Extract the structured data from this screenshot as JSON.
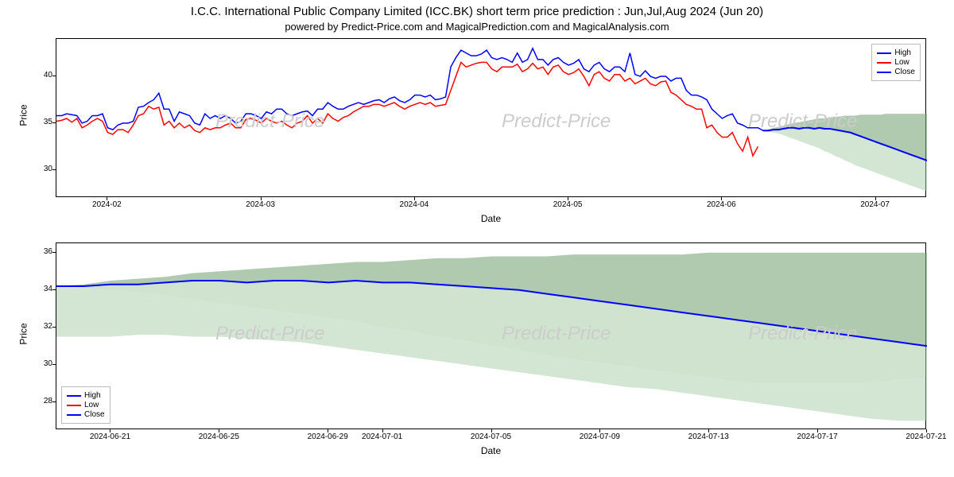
{
  "title": "I.C.C. International Public Company Limited (ICC.BK) short term price prediction : Jun,Jul,Aug 2024 (Jun 20)",
  "subtitle": "powered by Predict-Price.com and MagicalPrediction.com and MagicalAnalysis.com",
  "watermark_text": "Predict-Price",
  "watermark_color": "#cccccc",
  "legend": {
    "items": [
      {
        "label": "High",
        "color": "#0000ff"
      },
      {
        "label": "Low",
        "color": "#ff0000"
      },
      {
        "label": "Close",
        "color": "#0000ff"
      }
    ]
  },
  "chart1": {
    "type": "line",
    "xlabel": "Date",
    "ylabel": "Price",
    "ylim": [
      27,
      44
    ],
    "yticks": [
      30,
      35,
      40
    ],
    "xticks": [
      "2024-02",
      "2024-03",
      "2024-04",
      "2024-05",
      "2024-06",
      "2024-07"
    ],
    "xtick_idx": [
      10,
      40,
      70,
      100,
      130,
      160
    ],
    "background_color": "#ffffff",
    "high": {
      "color": "#0000ff",
      "linewidth": 1.5,
      "values": [
        35.8,
        35.8,
        36,
        35.9,
        35.8,
        35,
        35.2,
        35.8,
        35.8,
        36,
        34.5,
        34.3,
        34.8,
        35,
        35,
        35.2,
        36.7,
        36.8,
        37.2,
        37.5,
        38.2,
        36.5,
        36.5,
        35.2,
        36.2,
        36,
        35.8,
        35,
        34.8,
        36,
        35.5,
        35.8,
        35.5,
        35.8,
        35.5,
        35,
        35.2,
        36,
        36,
        35.8,
        35.5,
        36.2,
        36,
        36.5,
        36.5,
        36,
        35.8,
        36,
        36.2,
        36.3,
        35.8,
        36.5,
        36.5,
        37.2,
        36.8,
        36.5,
        36.5,
        36.8,
        37,
        37.2,
        37,
        37.2,
        37.4,
        37.5,
        37.2,
        37.6,
        37.8,
        37.4,
        37.2,
        37.5,
        38,
        38,
        37.8,
        38,
        37.5,
        37.6,
        37.8,
        41,
        42,
        42.8,
        42.5,
        42.2,
        42.2,
        42.4,
        42.8,
        42,
        41.8,
        42,
        41.8,
        41.5,
        42.5,
        41.5,
        41.8,
        43,
        41.8,
        41.8,
        41.2,
        41.8,
        42,
        41.5,
        41.2,
        41.4,
        41.8,
        40.8,
        40.5,
        41.2,
        41.5,
        40.8,
        40.5,
        41,
        41,
        40.5,
        42.5,
        40.2,
        40,
        40.6,
        40,
        39.8,
        40,
        40,
        39.5,
        39.8,
        39.8,
        38.5,
        38,
        38,
        37.8,
        37.5,
        36.5,
        36,
        35.5,
        35.8,
        36,
        35,
        34.8,
        34.5,
        34.5,
        34.5,
        34.2,
        34.2,
        34.3,
        34.3,
        34.4,
        34.5,
        34.5,
        34.4,
        34.5,
        34.5,
        34.4,
        34.5,
        34.4,
        34.4,
        34.3,
        34.2,
        34.1,
        34.0,
        33.8,
        33.6,
        33.4,
        33.2,
        33.0,
        32.8,
        32.6,
        32.4,
        32.2,
        32.0,
        31.8,
        31.6,
        31.4,
        31.2,
        31.0
      ]
    },
    "low": {
      "color": "#ff0000",
      "linewidth": 1.5,
      "values": [
        35.2,
        35.3,
        35.5,
        35.1,
        35.5,
        34.5,
        34.8,
        35.2,
        35.5,
        35.2,
        34.0,
        33.8,
        34.3,
        34.3,
        34.0,
        34.8,
        35.8,
        36.0,
        36.8,
        36.5,
        36.7,
        34.8,
        35.2,
        34.5,
        35.0,
        34.5,
        34.8,
        34.2,
        34.0,
        34.5,
        34.3,
        34.5,
        34.5,
        34.8,
        35.0,
        34.5,
        34.5,
        35.4,
        35.5,
        35.3,
        35.0,
        35.5,
        35.2,
        35.0,
        35.2,
        34.8,
        34.5,
        35.0,
        35.2,
        35.8,
        35.0,
        35.5,
        35.0,
        36.0,
        35.5,
        35.2,
        35.6,
        35.8,
        36.2,
        36.5,
        36.8,
        36.8,
        37.0,
        37.0,
        36.8,
        37.0,
        37.2,
        36.8,
        36.5,
        36.8,
        37.0,
        37.2,
        37.0,
        37.2,
        36.8,
        36.9,
        37.0,
        38.5,
        40.0,
        41.5,
        41.0,
        41.2,
        41.4,
        41.5,
        41.5,
        40.8,
        40.5,
        41.0,
        41.0,
        41.0,
        41.3,
        40.5,
        40.8,
        41.4,
        40.8,
        41.0,
        40.2,
        41.0,
        41.2,
        40.5,
        40.2,
        40.4,
        40.8,
        40.0,
        39.0,
        40.2,
        40.5,
        39.8,
        39.5,
        40.2,
        40.2,
        39.5,
        39.8,
        39.2,
        39.5,
        39.8,
        39.2,
        39.0,
        39.4,
        39.5,
        38.3,
        38.0,
        37.5,
        37.0,
        36.8,
        36.5,
        36.5,
        34.5,
        34.8,
        34.0,
        33.5,
        33.5,
        34.0,
        32.8,
        32.0,
        33.5,
        31.5,
        32.5
      ]
    },
    "close": {
      "color": "#0000ff",
      "linewidth": 2,
      "start_idx": 138,
      "values": [
        34.2,
        34.2,
        34.3,
        34.3,
        34.4,
        34.5,
        34.5,
        34.4,
        34.5,
        34.5,
        34.4,
        34.5,
        34.4,
        34.4,
        34.3,
        34.2,
        34.1,
        34.0,
        33.8,
        33.6,
        33.4,
        33.2,
        33.0,
        32.8,
        32.6,
        32.4,
        32.2,
        32.0,
        31.8,
        31.6,
        31.4,
        31.2,
        31.0
      ]
    },
    "band_upper": {
      "color": "#7ba67b",
      "opacity": 0.6,
      "start_idx": 138,
      "values": [
        34.2,
        34.3,
        34.5,
        34.6,
        34.7,
        34.9,
        35.0,
        35.1,
        35.2,
        35.3,
        35.4,
        35.5,
        35.5,
        35.6,
        35.7,
        35.7,
        35.8,
        35.8,
        35.8,
        35.9,
        35.9,
        35.9,
        35.9,
        35.9,
        36.0,
        36.0,
        36.0,
        36.0,
        36.0,
        36.0,
        36.0,
        36.0,
        36.0
      ]
    },
    "band_lower": {
      "color": "#a8cca8",
      "opacity": 0.5,
      "start_idx": 138,
      "values": [
        34.2,
        34.1,
        34.0,
        33.9,
        33.7,
        33.5,
        33.3,
        33.1,
        32.9,
        32.7,
        32.5,
        32.3,
        32.0,
        31.8,
        31.5,
        31.3,
        31.0,
        30.8,
        30.5,
        30.3,
        30.1,
        29.9,
        29.7,
        29.5,
        29.3,
        29.1,
        28.9,
        28.7,
        28.5,
        28.3,
        28.1,
        27.9,
        27.7
      ]
    }
  },
  "chart2": {
    "type": "line",
    "xlabel": "Date",
    "ylabel": "Price",
    "ylim": [
      26.5,
      36.5
    ],
    "yticks": [
      28,
      30,
      32,
      34,
      36
    ],
    "xticks": [
      "2024-06-21",
      "2024-06-25",
      "2024-06-29",
      "2024-07-01",
      "2024-07-05",
      "2024-07-09",
      "2024-07-13",
      "2024-07-17",
      "2024-07-21"
    ],
    "xtick_idx": [
      2,
      6,
      10,
      12,
      16,
      20,
      24,
      28,
      32
    ],
    "background_color": "#ffffff",
    "close": {
      "color": "#0000ff",
      "linewidth": 2,
      "values": [
        34.2,
        34.2,
        34.3,
        34.3,
        34.4,
        34.5,
        34.5,
        34.4,
        34.5,
        34.5,
        34.4,
        34.5,
        34.4,
        34.4,
        34.3,
        34.2,
        34.1,
        34.0,
        33.8,
        33.6,
        33.4,
        33.2,
        33.0,
        32.8,
        32.6,
        32.4,
        32.2,
        32.0,
        31.8,
        31.6,
        31.4,
        31.2,
        31.0
      ]
    },
    "band_upper": {
      "color": "#7ba67b",
      "opacity": 0.6,
      "values": [
        34.2,
        34.3,
        34.5,
        34.6,
        34.7,
        34.9,
        35.0,
        35.1,
        35.2,
        35.3,
        35.4,
        35.5,
        35.5,
        35.6,
        35.7,
        35.7,
        35.8,
        35.8,
        35.8,
        35.9,
        35.9,
        35.9,
        35.9,
        35.9,
        36.0,
        36.0,
        36.0,
        36.0,
        36.0,
        36.0,
        36.0,
        36.0,
        36.0
      ]
    },
    "band_lower": {
      "color": "#a8cca8",
      "opacity": 0.5,
      "values": [
        31.5,
        31.5,
        31.5,
        31.6,
        31.6,
        31.5,
        31.5,
        31.4,
        31.3,
        31.2,
        31.0,
        30.8,
        30.6,
        30.4,
        30.2,
        30.0,
        29.8,
        29.6,
        29.4,
        29.2,
        29.0,
        28.8,
        28.7,
        28.5,
        28.3,
        28.1,
        27.9,
        27.7,
        27.5,
        27.3,
        27.1,
        27.0,
        27.0
      ]
    },
    "band_mid": {
      "color": "#a8cca8",
      "values": [
        34.2,
        34.1,
        34.0,
        33.9,
        33.7,
        33.5,
        33.3,
        33.1,
        32.9,
        32.7,
        32.5,
        32.3,
        32.0,
        31.8,
        31.5,
        31.3,
        31.0,
        30.8,
        30.5,
        30.3,
        30.1,
        29.9,
        29.7,
        29.5,
        29.3,
        29.1,
        29.0,
        29.0,
        29.0,
        29.0,
        29.1,
        29.2,
        29.3
      ]
    }
  }
}
